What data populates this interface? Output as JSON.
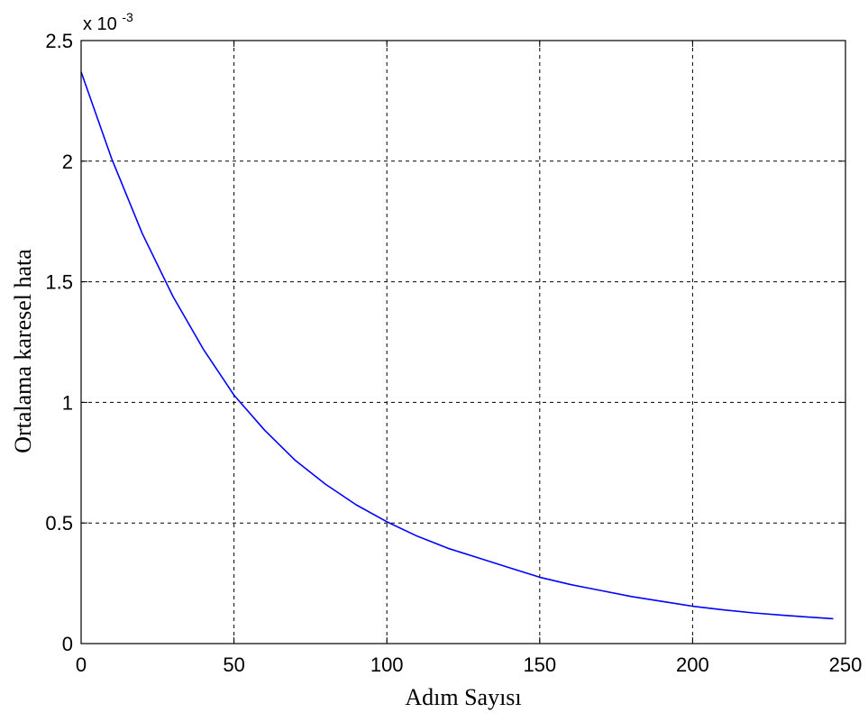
{
  "chart_data": {
    "type": "line",
    "title": "",
    "xlabel": "Adım Sayısı",
    "ylabel": "Ortalama karesel hata",
    "y_multiplier": {
      "base": "x 10",
      "exponent": "-3"
    },
    "xlim": [
      0,
      250
    ],
    "ylim": [
      0,
      2.5
    ],
    "xticks": [
      0,
      50,
      100,
      150,
      200,
      250
    ],
    "yticks": [
      0,
      0.5,
      1,
      1.5,
      2,
      2.5
    ],
    "xtick_labels": [
      "0",
      "50",
      "100",
      "150",
      "200",
      "250"
    ],
    "ytick_labels": [
      "0",
      "0.5",
      "1",
      "1.5",
      "2",
      "2.5"
    ],
    "grid": true,
    "legend": "none",
    "series": [
      {
        "color": "#0000ff",
        "x": [
          0,
          10,
          20,
          30,
          40,
          50,
          60,
          70,
          80,
          90,
          100,
          110,
          120,
          130,
          140,
          150,
          160,
          170,
          180,
          190,
          200,
          210,
          220,
          230,
          240,
          246
        ],
        "y": [
          2.37,
          2.01,
          1.7,
          1.44,
          1.22,
          1.03,
          0.885,
          0.76,
          0.66,
          0.575,
          0.505,
          0.445,
          0.395,
          0.355,
          0.315,
          0.275,
          0.245,
          0.22,
          0.195,
          0.175,
          0.155,
          0.14,
          0.127,
          0.117,
          0.108,
          0.103
        ]
      }
    ]
  }
}
